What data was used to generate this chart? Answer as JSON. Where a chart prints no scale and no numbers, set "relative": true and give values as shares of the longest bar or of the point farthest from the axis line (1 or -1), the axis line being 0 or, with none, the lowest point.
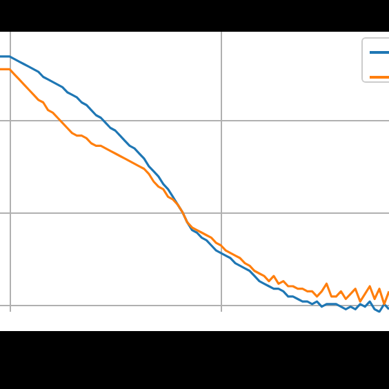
{
  "chart_data": {
    "type": "line",
    "relative": true,
    "grid": true,
    "line_style": "solid",
    "categories": [
      null,
      null,
      null,
      null,
      null,
      null,
      null,
      null,
      null,
      null,
      null,
      null,
      null,
      null,
      null,
      null,
      null,
      null,
      null,
      null,
      null,
      null,
      null,
      null,
      null,
      null,
      null,
      null,
      null,
      null,
      null,
      null,
      null,
      null,
      null,
      null,
      null,
      null,
      null,
      null,
      null,
      null,
      null,
      null,
      null,
      null,
      null,
      null,
      null,
      null,
      null,
      null,
      null,
      null,
      null,
      null,
      null,
      null,
      null,
      null,
      null,
      null,
      null,
      null,
      null,
      null,
      null,
      null,
      null,
      null,
      null,
      null,
      null,
      null,
      null,
      null,
      null,
      null,
      null,
      null,
      null,
      null
    ],
    "series": [
      {
        "color": "#1f77b4",
        "values": [
          1.0,
          1.0,
          1.0,
          0.99,
          0.98,
          0.97,
          0.96,
          0.95,
          0.94,
          0.92,
          0.91,
          0.9,
          0.89,
          0.88,
          0.86,
          0.85,
          0.84,
          0.82,
          0.81,
          0.79,
          0.77,
          0.76,
          0.74,
          0.72,
          0.71,
          0.69,
          0.67,
          0.65,
          0.64,
          0.62,
          0.6,
          0.57,
          0.55,
          0.53,
          0.5,
          0.48,
          0.45,
          0.42,
          0.39,
          0.35,
          0.32,
          0.31,
          0.29,
          0.28,
          0.26,
          0.24,
          0.23,
          0.22,
          0.21,
          0.19,
          0.18,
          0.17,
          0.16,
          0.14,
          0.12,
          0.11,
          0.1,
          0.09,
          0.09,
          0.08,
          0.06,
          0.06,
          0.05,
          0.04,
          0.04,
          0.03,
          0.04,
          0.02,
          0.03,
          0.03,
          0.03,
          0.02,
          0.01,
          0.02,
          0.01,
          0.03,
          0.02,
          0.04,
          0.01,
          0,
          0.03,
          0.01
        ]
      },
      {
        "color": "#ff7f0e",
        "values": [
          0.95,
          0.95,
          0.95,
          0.93,
          0.91,
          0.89,
          0.87,
          0.85,
          0.83,
          0.82,
          0.79,
          0.78,
          0.76,
          0.74,
          0.72,
          0.7,
          0.69,
          0.69,
          0.68,
          0.66,
          0.65,
          0.65,
          0.64,
          0.63,
          0.62,
          0.61,
          0.6,
          0.59,
          0.58,
          0.57,
          0.56,
          0.54,
          0.51,
          0.49,
          0.48,
          0.45,
          0.44,
          0.42,
          0.39,
          0.35,
          0.33,
          0.32,
          0.31,
          0.3,
          0.29,
          0.27,
          0.26,
          0.24,
          0.23,
          0.22,
          0.21,
          0.19,
          0.18,
          0.16,
          0.15,
          0.14,
          0.12,
          0.14,
          0.11,
          0.12,
          0.1,
          0.1,
          0.09,
          0.09,
          0.08,
          0.08,
          0.06,
          0.08,
          0.11,
          0.06,
          0.06,
          0.08,
          0.05,
          0.07,
          0.09,
          0.04,
          0.07,
          0.1,
          0.05,
          0.09,
          0.03,
          0.08
        ]
      }
    ]
  }
}
